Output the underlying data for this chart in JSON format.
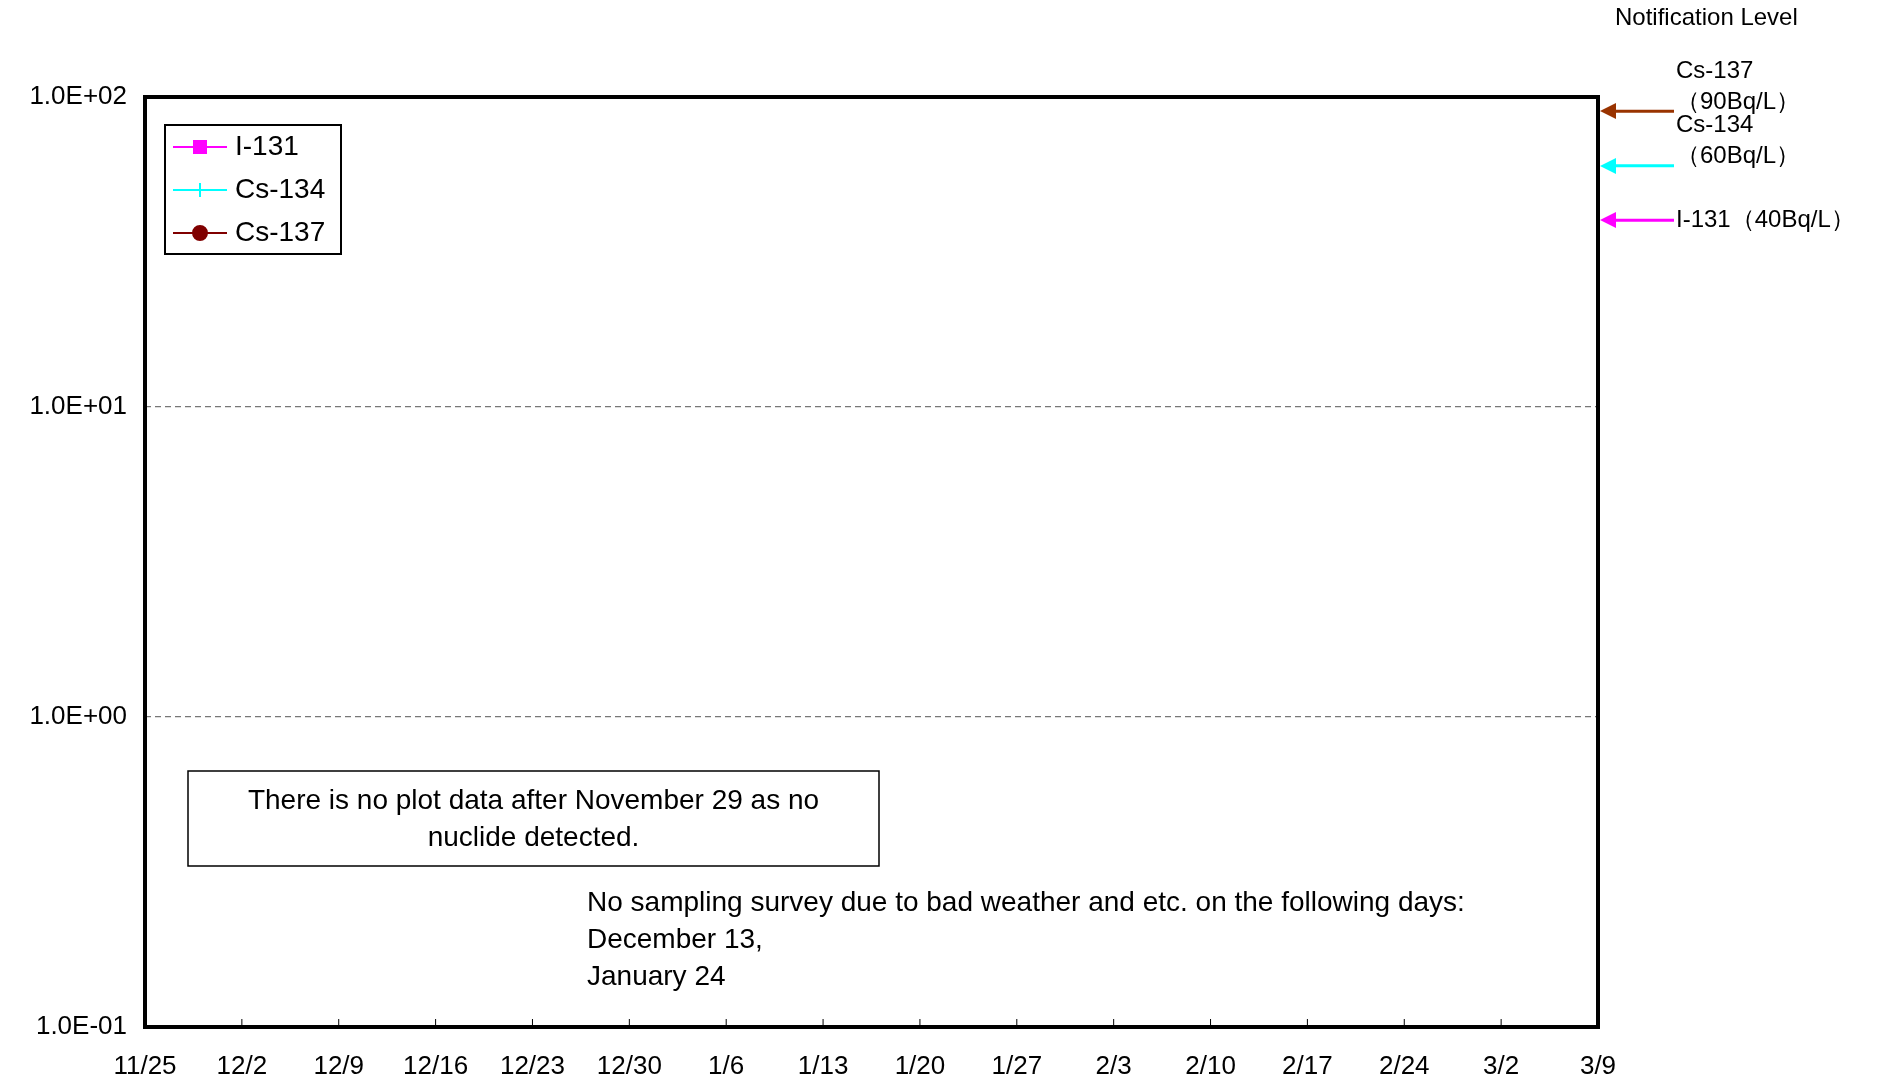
{
  "chart_data": {
    "type": "line",
    "categories": [
      "11/25",
      "12/2",
      "12/9",
      "12/16",
      "12/23",
      "12/30",
      "1/6",
      "1/13",
      "1/20",
      "1/27",
      "2/3",
      "2/10",
      "2/17",
      "2/24",
      "3/2",
      "3/9"
    ],
    "series": [
      {
        "name": "I-131",
        "color": "#ff00ff",
        "marker": "square",
        "values": [
          null,
          null,
          null,
          null,
          null,
          null,
          null,
          null,
          null,
          null,
          null,
          null,
          null,
          null,
          null,
          null
        ]
      },
      {
        "name": "Cs-134",
        "color": "#00ffff",
        "marker": "cross",
        "values": [
          null,
          null,
          null,
          null,
          null,
          null,
          null,
          null,
          null,
          null,
          null,
          null,
          null,
          null,
          null,
          null
        ]
      },
      {
        "name": "Cs-137",
        "color": "#800000",
        "marker": "circle",
        "values": [
          null,
          null,
          null,
          null,
          null,
          null,
          null,
          null,
          null,
          null,
          null,
          null,
          null,
          null,
          null,
          null
        ]
      }
    ],
    "log": "y",
    "ylim": [
      0.1,
      100
    ],
    "yticks": [
      {
        "value": 0.1,
        "label": "1.0E-01"
      },
      {
        "value": 1,
        "label": "1.0E+00"
      },
      {
        "value": 10,
        "label": "1.0E+01"
      },
      {
        "value": 100,
        "label": "1.0E+02"
      }
    ],
    "grid": "y",
    "legend": "top left",
    "ref_lines": [
      {
        "axis": "y",
        "value": 90,
        "label": "Cs-137\n（90Bq/L）",
        "color": "#993300"
      },
      {
        "axis": "y",
        "value": 60,
        "label": "Cs-134\n（60Bq/L）",
        "color": "#00ffff"
      },
      {
        "axis": "y",
        "value": 40,
        "label": "I-131（40Bq/L）",
        "color": "#ff00ff"
      }
    ],
    "annotations": [
      "Notification Level",
      "There is no plot data after November 29 as no nuclide detected.",
      "No sampling survey due to bad weather and etc. on the following days:\nDecember 13,\nJanuary 24"
    ]
  }
}
